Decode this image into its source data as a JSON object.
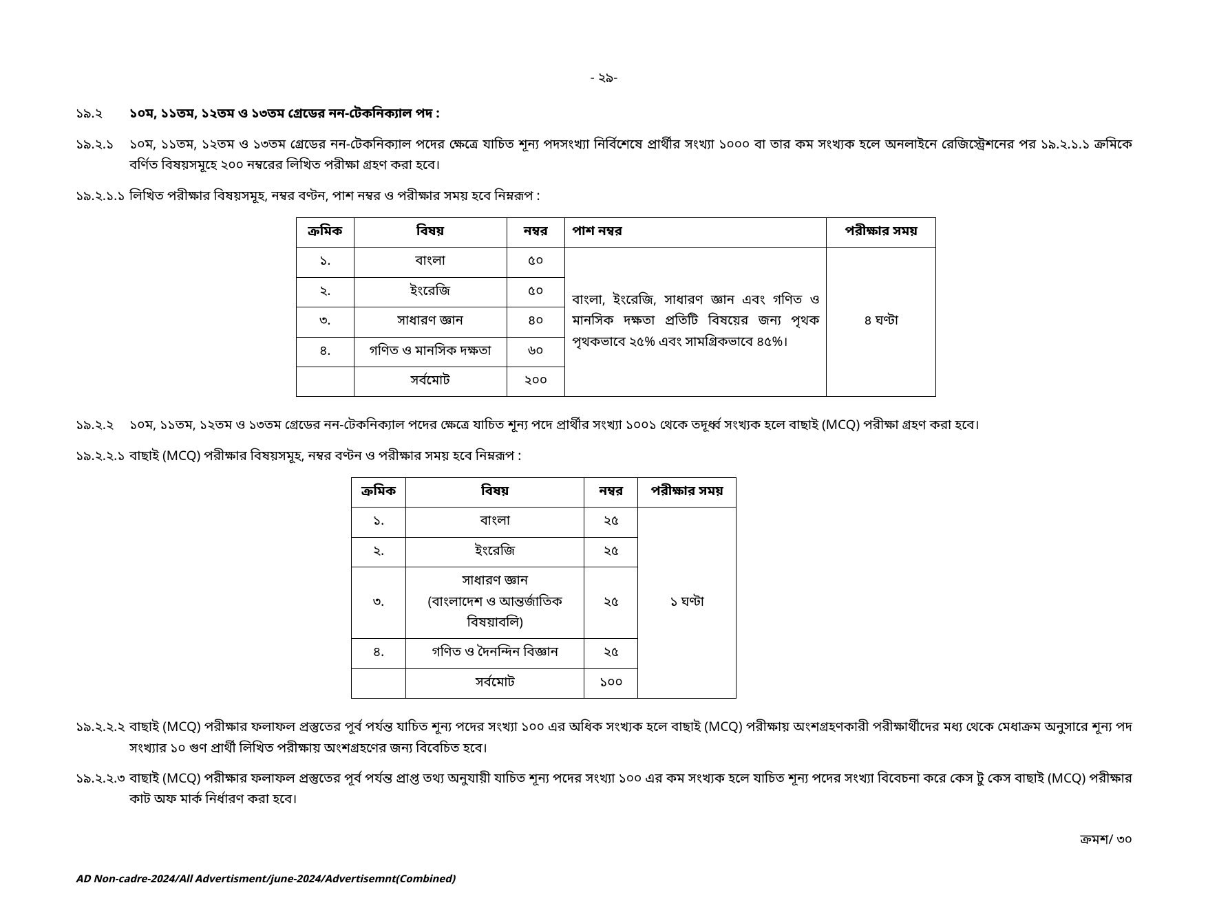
{
  "page_number": "- ২৯-",
  "s19_2_num": "১৯.২",
  "s19_2_text": "১০ম, ১১তম, ১২তম ও ১৩তম গ্রেডের নন-টেকনিক্যাল পদ :",
  "s19_2_1_num": "১৯.২.১",
  "s19_2_1_text": "১০ম, ১১তম, ১২তম ও ১৩তম গ্রেডের নন-টেকনিক্যাল পদের ক্ষেত্রে যাচিত শূন্য পদসংখ্যা নির্বিশেষে প্রার্থীর সংখ্যা ১০০০ বা তার কম সংখ্যক হলে অনলাইনে রেজিস্ট্রেশনের পর ১৯.২.১.১ ক্রমিকে বর্ণিত বিষয়সমূহে ২০০ নম্বরের লিখিত পরীক্ষা গ্রহণ করা হবে।",
  "s19_2_1_1_num": "১৯.২.১.১",
  "s19_2_1_1_text": "লিখিত পরীক্ষার বিষয়সমূহ, নম্বর বণ্টন, পাশ নম্বর ও পরীক্ষার সময় হবে নিম্নরূপ :",
  "table1": {
    "h1": "ক্রমিক",
    "h2": "বিষয়",
    "h3": "নম্বর",
    "h4": "পাশ নম্বর",
    "h5": "পরীক্ষার সময়",
    "r1c1": "১.",
    "r1c2": "বাংলা",
    "r1c3": "৫০",
    "r2c1": "২.",
    "r2c2": "ইংরেজি",
    "r2c3": "৫০",
    "r3c1": "৩.",
    "r3c2": "সাধারণ জ্ঞান",
    "r3c3": "৪০",
    "r4c1": "৪.",
    "r4c2": "গণিত ও মানসিক দক্ষতা",
    "r4c3": "৬০",
    "r5c2": "সর্বমোট",
    "r5c3": "২০০",
    "pass_text": "বাংলা, ইংরেজি, সাধারণ জ্ঞান এবং গণিত ও মানসিক দক্ষতা প্রতিটি বিষয়ের জন্য পৃথক পৃথকভাবে ২৫% এবং সামগ্রিকভাবে ৪৫%।",
    "time_text": "৪ ঘণ্টা"
  },
  "s19_2_2_num": "১৯.২.২",
  "s19_2_2_text": "১০ম, ১১তম, ১২তম ও ১৩তম গ্রেডের নন-টেকনিক্যাল পদের ক্ষেত্রে যাচিত শূন্য পদে প্রার্থীর সংখ্যা ১০০১ থেকে তদূর্ধ্ব সংখ্যক হলে বাছাই (MCQ) পরীক্ষা গ্রহণ করা হবে।",
  "s19_2_2_1_num": "১৯.২.২.১",
  "s19_2_2_1_text": "বাছাই (MCQ) পরীক্ষার বিষয়সমূহ, নম্বর বণ্টন ও পরীক্ষার সময় হবে নিম্নরূপ :",
  "table2": {
    "h1": "ক্রমিক",
    "h2": "বিষয়",
    "h3": "নম্বর",
    "h4": "পরীক্ষার সময়",
    "r1c1": "১.",
    "r1c2": "বাংলা",
    "r1c3": "২৫",
    "r2c1": "২.",
    "r2c2": "ইংরেজি",
    "r2c3": "২৫",
    "r3c1": "৩.",
    "r3c2a": "সাধারণ জ্ঞান",
    "r3c2b": "(বাংলাদেশ ও আন্তর্জাতিক বিষয়াবলি)",
    "r3c3": "২৫",
    "r4c1": "৪.",
    "r4c2": "গণিত ও দৈনন্দিন বিজ্ঞান",
    "r4c3": "২৫",
    "r5c2": "সর্বমোট",
    "r5c3": "১০০",
    "time_text": "১ ঘণ্টা"
  },
  "s19_2_2_2_num": "১৯.২.২.২",
  "s19_2_2_2_text": "বাছাই (MCQ) পরীক্ষার ফলাফল প্রস্তুতের পূর্ব পর্যন্ত যাচিত শূন্য পদের সংখ্যা ১০০ এর অধিক সংখ্যক হলে বাছাই (MCQ) পরীক্ষায় অংশগ্রহণকারী পরীক্ষার্থীদের মধ্য থেকে মেধাক্রম অনুসারে শূন্য পদ সংখ্যার ১০ গুণ প্রার্থী লিখিত পরীক্ষায় অংশগ্রহণের জন্য বিবেচিত হবে।",
  "s19_2_2_3_num": "১৯.২.২.৩",
  "s19_2_2_3_text": "বাছাই (MCQ) পরীক্ষার ফলাফল প্রস্তুতের পূর্ব পর্যন্ত প্রাপ্ত তথ্য অনুযায়ী যাচিত শূন্য পদের সংখ্যা ১০০ এর কম সংখ্যক হলে যাচিত শূন্য পদের সংখ্যা বিবেচনা করে কেস টু কেস বাছাই (MCQ) পরীক্ষার কাট অফ মার্ক নির্ধারণ করা হবে।",
  "cont_text": "ক্রমশ/ ৩০",
  "footer_text": "AD Non-cadre-2024/All Advertisment/june-2024/Advertisemnt(Combined)"
}
